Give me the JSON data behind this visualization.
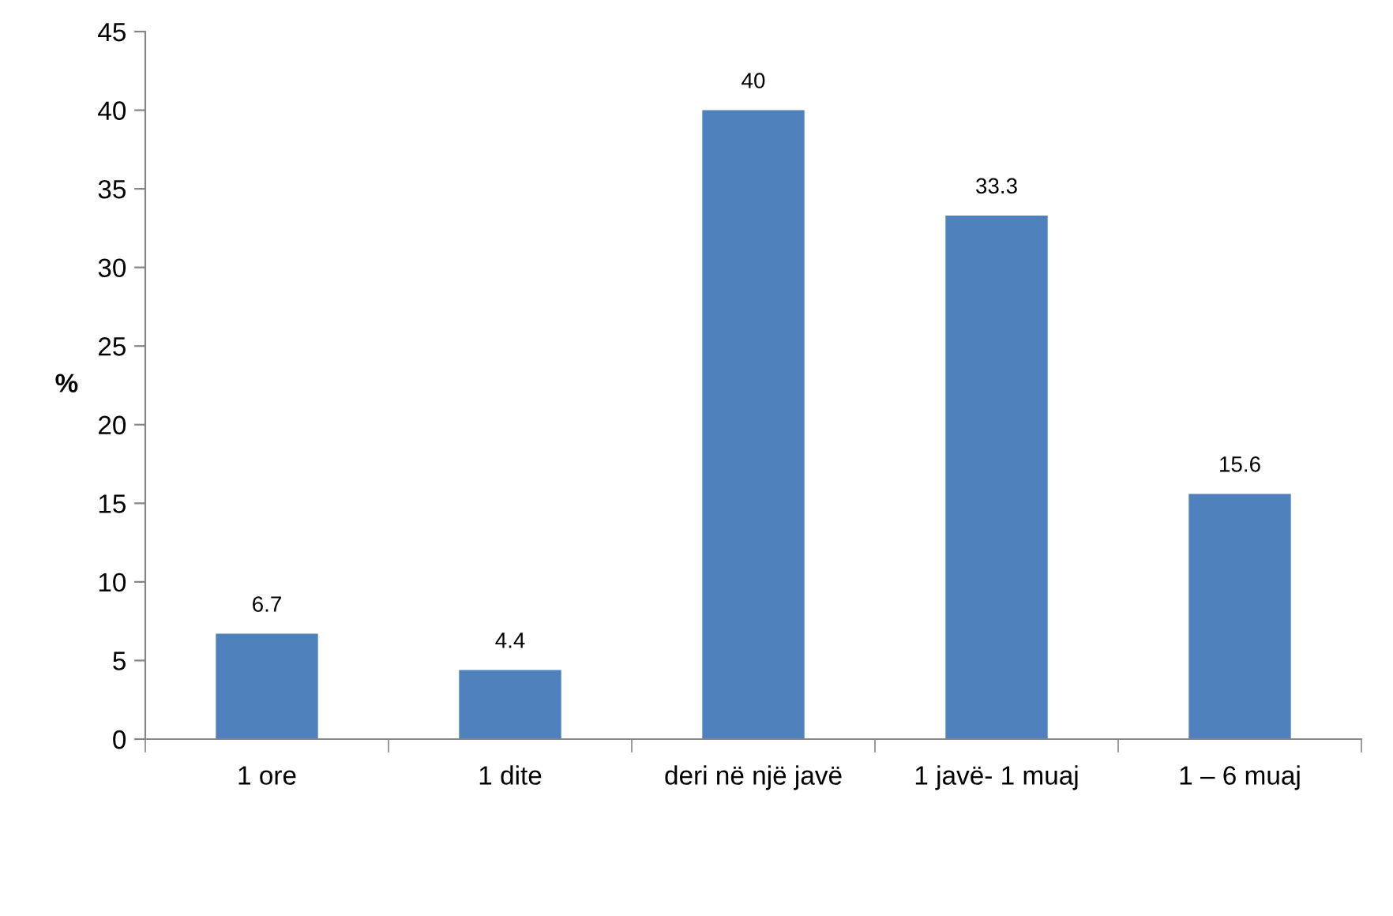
{
  "chart_data": {
    "type": "bar",
    "ylabel": "%",
    "categories": [
      "1 ore",
      "1 dite",
      "deri në një javë",
      "1 javë- 1 muaj",
      "1 – 6 muaj"
    ],
    "values": [
      6.7,
      4.4,
      40,
      33.3,
      15.6
    ],
    "color": "#4f81bd",
    "ylim": [
      0,
      45
    ],
    "yticks": [
      0,
      5,
      10,
      15,
      20,
      25,
      30,
      35,
      40,
      45
    ],
    "data_labels": true,
    "grid": false
  }
}
